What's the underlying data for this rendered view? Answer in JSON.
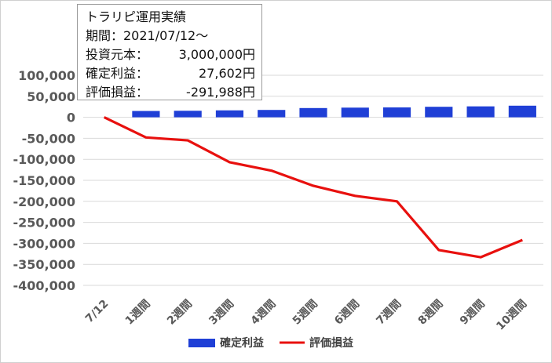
{
  "info_box": {
    "title": "トラリピ運用実績",
    "period": "期間：2021/07/12～",
    "rows": [
      {
        "label": "投資元本：",
        "value": "3,000,000円"
      },
      {
        "label": "確定利益：",
        "value": "27,602円"
      },
      {
        "label": "評価損益：",
        "value": "-291,988円"
      }
    ]
  },
  "chart_data": {
    "type": "bar",
    "categories": [
      "7/12",
      "1週間",
      "2週間",
      "3週間",
      "4週間",
      "5週間",
      "6週間",
      "7週間",
      "8週間",
      "9週間",
      "10週間"
    ],
    "y_ticks": [
      "100,000",
      "50,000",
      "0",
      "-50,000",
      "-100,000",
      "-150,000",
      "-200,000",
      "-250,000",
      "-300,000",
      "-350,000",
      "-400,000"
    ],
    "ylim": [
      -400000,
      100000
    ],
    "grid": true,
    "legend_position": "bottom",
    "series": [
      {
        "name": "確定利益",
        "type": "bar",
        "color": "#1f3fd6",
        "values": [
          null,
          15000,
          15500,
          16500,
          17500,
          22000,
          23000,
          23500,
          25000,
          26000,
          27602
        ]
      },
      {
        "name": "評価損益",
        "type": "line",
        "color": "#e8100e",
        "values": [
          0,
          -48000,
          -55000,
          -107000,
          -127000,
          -163000,
          -187000,
          -200000,
          -316000,
          -333000,
          -291988
        ]
      }
    ]
  }
}
